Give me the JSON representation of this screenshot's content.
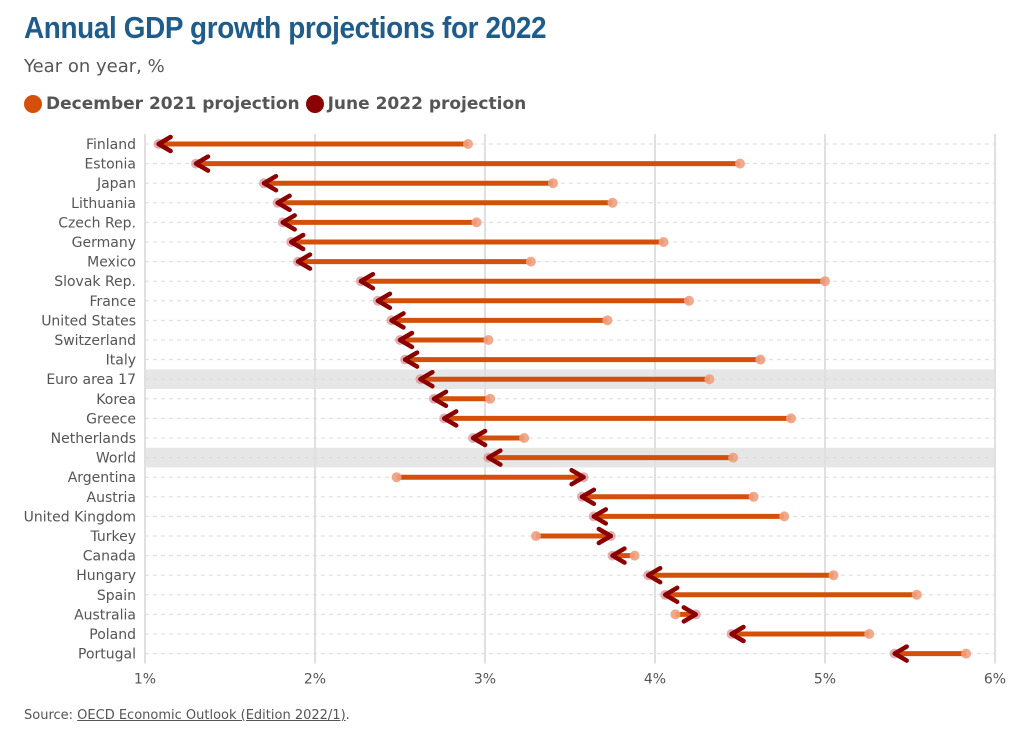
{
  "header": {
    "title": "Annual GDP growth projections for 2022",
    "subtitle": "Year on year, %"
  },
  "legend": {
    "items": [
      {
        "label": "December 2021 projection",
        "color": "#d4500a"
      },
      {
        "label": "June 2022 projection",
        "color": "#8b0000"
      }
    ]
  },
  "source": {
    "prefix": "Source: ",
    "link_text": "OECD Economic Outlook (Edition 2022/1)",
    "suffix": "."
  },
  "chart_data": {
    "type": "dumbbell-arrow",
    "title": "Annual GDP growth projections for 2022",
    "xlabel": "",
    "ylabel": "",
    "xlim": [
      1,
      6
    ],
    "xticks": [
      "1%",
      "2%",
      "3%",
      "4%",
      "5%",
      "6%"
    ],
    "grid": true,
    "highlight_rows": [
      "Euro area 17",
      "World"
    ],
    "series_names": [
      "December 2021 projection",
      "June 2022 projection"
    ],
    "rows": [
      {
        "country": "Finland",
        "dec2021": 2.9,
        "jun2022": 1.08
      },
      {
        "country": "Estonia",
        "dec2021": 4.5,
        "jun2022": 1.3
      },
      {
        "country": "Japan",
        "dec2021": 3.4,
        "jun2022": 1.7
      },
      {
        "country": "Lithuania",
        "dec2021": 3.75,
        "jun2022": 1.78
      },
      {
        "country": "Czech Rep.",
        "dec2021": 2.95,
        "jun2022": 1.81
      },
      {
        "country": "Germany",
        "dec2021": 4.05,
        "jun2022": 1.86
      },
      {
        "country": "Mexico",
        "dec2021": 3.27,
        "jun2022": 1.9
      },
      {
        "country": "Slovak Rep.",
        "dec2021": 5.0,
        "jun2022": 2.27
      },
      {
        "country": "France",
        "dec2021": 4.2,
        "jun2022": 2.37
      },
      {
        "country": "United States",
        "dec2021": 3.72,
        "jun2022": 2.45
      },
      {
        "country": "Switzerland",
        "dec2021": 3.02,
        "jun2022": 2.5
      },
      {
        "country": "Italy",
        "dec2021": 4.62,
        "jun2022": 2.53
      },
      {
        "country": "Euro area 17",
        "dec2021": 4.32,
        "jun2022": 2.62
      },
      {
        "country": "Korea",
        "dec2021": 3.03,
        "jun2022": 2.7
      },
      {
        "country": "Greece",
        "dec2021": 4.8,
        "jun2022": 2.76
      },
      {
        "country": "Netherlands",
        "dec2021": 3.23,
        "jun2022": 2.93
      },
      {
        "country": "World",
        "dec2021": 4.46,
        "jun2022": 3.02
      },
      {
        "country": "Argentina",
        "dec2021": 2.48,
        "jun2022": 3.58
      },
      {
        "country": "Austria",
        "dec2021": 4.58,
        "jun2022": 3.57
      },
      {
        "country": "United Kingdom",
        "dec2021": 4.76,
        "jun2022": 3.64
      },
      {
        "country": "Turkey",
        "dec2021": 3.3,
        "jun2022": 3.74
      },
      {
        "country": "Canada",
        "dec2021": 3.88,
        "jun2022": 3.75
      },
      {
        "country": "Hungary",
        "dec2021": 5.05,
        "jun2022": 3.96
      },
      {
        "country": "Spain",
        "dec2021": 5.54,
        "jun2022": 4.06
      },
      {
        "country": "Australia",
        "dec2021": 4.12,
        "jun2022": 4.24
      },
      {
        "country": "Poland",
        "dec2021": 5.26,
        "jun2022": 4.45
      },
      {
        "country": "Portugal",
        "dec2021": 5.83,
        "jun2022": 5.41
      }
    ]
  }
}
